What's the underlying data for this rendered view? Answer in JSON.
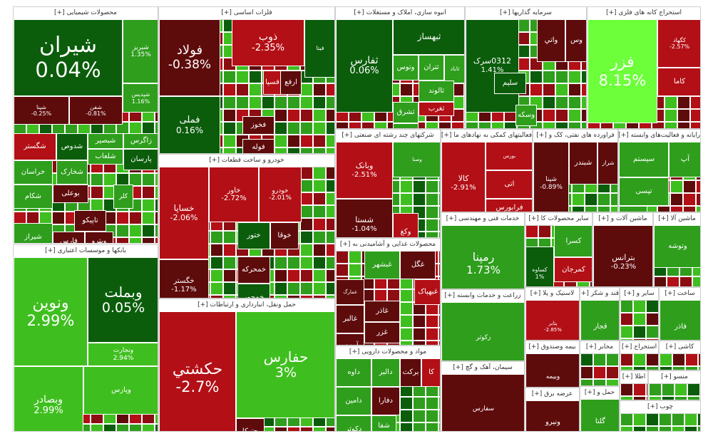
{
  "colors": {
    "dark_green": "#0b5d0b",
    "green": "#2e9e1c",
    "light_green": "#3fbf1f",
    "bright_green": "#6cff3a",
    "red": "#b30f16",
    "dark_red": "#5e0b0b",
    "medium_red": "#8c0d12"
  },
  "sectors": [
    {
      "title": "محصولات شیمیایی [+]",
      "tiles": [
        {
          "sym": "شیران",
          "pct": "0.04%",
          "c": "dark_green"
        },
        {
          "sym": "شبریز",
          "pct": "1.35%",
          "c": "green"
        },
        {
          "sym": "شپدیس",
          "pct": "1.16%",
          "c": "green"
        },
        {
          "sym": "شپنا",
          "pct": "-0.25%",
          "c": "dark_red"
        },
        {
          "sym": "شفن",
          "pct": "-0.81%",
          "c": "dark_red"
        },
        {
          "sym": "شگستر",
          "pct": "",
          "c": "red"
        },
        {
          "sym": "شدوص",
          "pct": "",
          "c": "dark_green"
        },
        {
          "sym": "شبصیر",
          "pct": "",
          "c": "green"
        },
        {
          "sym": "زاگرس",
          "pct": "",
          "c": "green"
        },
        {
          "sym": "خراسان",
          "pct": "",
          "c": "green"
        },
        {
          "sym": "شخارک",
          "pct": "",
          "c": "green"
        },
        {
          "sym": "شلعاب",
          "pct": "",
          "c": "green"
        },
        {
          "sym": "پارسان",
          "pct": "",
          "c": "dark_green"
        },
        {
          "sym": "شکام",
          "pct": "",
          "c": "green"
        },
        {
          "sym": "بوعلی",
          "pct": "",
          "c": "dark_red"
        },
        {
          "sym": "تاپیکو",
          "pct": "",
          "c": "dark_red"
        },
        {
          "sym": "شیراز",
          "pct": "",
          "c": "green"
        },
        {
          "sym": "فارس",
          "pct": "",
          "c": "dark_red"
        },
        {
          "sym": "وپترو",
          "pct": "",
          "c": "dark_red"
        },
        {
          "sym": "کلر",
          "pct": "",
          "c": "green"
        }
      ]
    },
    {
      "title": "بانکها و موسسات اعتباری [+]",
      "tiles": [
        {
          "sym": "ونوین",
          "pct": "2.99%",
          "c": "light_green"
        },
        {
          "sym": "وبملت",
          "pct": "0.05%",
          "c": "dark_green"
        },
        {
          "sym": "ونجارت",
          "pct": "2.94%",
          "c": "light_green"
        },
        {
          "sym": "وبصادر",
          "pct": "2.99%",
          "c": "light_green"
        },
        {
          "sym": "وپارس",
          "pct": "",
          "c": "light_green"
        }
      ]
    },
    {
      "title": "فلزات اساسی [+]",
      "tiles": [
        {
          "sym": "فولاد",
          "pct": "-0.38%",
          "c": "dark_red"
        },
        {
          "sym": "ذوب",
          "pct": "-2.35%",
          "c": "red"
        },
        {
          "sym": "فملی",
          "pct": "0.16%",
          "c": "dark_green"
        },
        {
          "sym": "فسپا",
          "pct": "",
          "c": "red"
        },
        {
          "sym": "ارفع",
          "pct": "",
          "c": "dark_red"
        },
        {
          "sym": "فیتا",
          "pct": "",
          "c": "dark_green"
        },
        {
          "sym": "فخوز",
          "pct": "",
          "c": "dark_red"
        },
        {
          "sym": "فوله",
          "pct": "",
          "c": "dark_red"
        }
      ]
    },
    {
      "title": "خودرو و ساخت قطعات [+]",
      "tiles": [
        {
          "sym": "خساپا",
          "pct": "-2.06%",
          "c": "red"
        },
        {
          "sym": "خاور",
          "pct": "-2.72%",
          "c": "red"
        },
        {
          "sym": "خودرو",
          "pct": "-2.01%",
          "c": "red"
        },
        {
          "sym": "خگستر",
          "pct": "-1.17%",
          "c": "dark_red"
        },
        {
          "sym": "ختور",
          "pct": "",
          "c": "dark_green"
        },
        {
          "sym": "خوقا",
          "pct": "",
          "c": "dark_red"
        },
        {
          "sym": "خمحرکه",
          "pct": "",
          "c": "dark_red"
        },
        {
          "sym": "خمحور",
          "pct": "",
          "c": "dark_green"
        }
      ]
    },
    {
      "title": "حمل ونقل، انبارداری و ارتباطات [+]",
      "tiles": [
        {
          "sym": "حکشتي",
          "pct": "-2.7%",
          "c": "red"
        },
        {
          "sym": "حفارس",
          "pct": "3%",
          "c": "light_green"
        },
        {
          "sym": "حتوکا",
          "pct": "",
          "c": "dark_red"
        }
      ]
    },
    {
      "title": "انبوه سازی، املاک و مستغلات [+]",
      "tiles": [
        {
          "sym": "ثفارس",
          "pct": "0.06%",
          "c": "dark_green"
        },
        {
          "sym": "ثبهساز",
          "pct": "",
          "c": "dark_green"
        },
        {
          "sym": "ثتران",
          "pct": "",
          "c": "green"
        },
        {
          "sym": "وتوس",
          "pct": "",
          "c": "green"
        },
        {
          "sym": "ثاباد",
          "pct": "",
          "c": "green"
        },
        {
          "sym": "ثالوند",
          "pct": "",
          "c": "green"
        },
        {
          "sym": "ثغرب",
          "pct": "",
          "c": "red"
        },
        {
          "sym": "ثشرق",
          "pct": "",
          "c": "green"
        },
        {
          "sym": "ثتوسا",
          "pct": "",
          "c": "green"
        }
      ]
    },
    {
      "title": "سرمایه گذاریها [+]",
      "tiles": [
        {
          "sym": "0312سرک",
          "pct": "1.41%",
          "c": "dark_green"
        },
        {
          "sym": "وس",
          "pct": "",
          "c": "dark_red"
        },
        {
          "sym": "واتي",
          "pct": "",
          "c": "dark_red"
        },
        {
          "sym": "سلیم",
          "pct": "",
          "c": "dark_green"
        },
        {
          "sym": "وسکه",
          "pct": "",
          "c": "green"
        }
      ]
    },
    {
      "title": "استخراج کانه های فلزی [+]",
      "tiles": [
        {
          "sym": "فزر",
          "pct": "8.15%",
          "c": "bright_green"
        },
        {
          "sym": "کگهاد",
          "pct": "-2.57%",
          "c": "red"
        },
        {
          "sym": "کاما",
          "pct": "",
          "c": "red"
        }
      ]
    },
    {
      "title": "شرکتهای چند رشته ای صنعتی [+]",
      "tiles": [
        {
          "sym": "وبانک",
          "pct": "-2.51%",
          "c": "red"
        },
        {
          "sym": "شستا",
          "pct": "-1.04%",
          "c": "dark_red"
        },
        {
          "sym": "وصنا",
          "pct": "",
          "c": "green"
        },
        {
          "sym": "وکغ",
          "pct": "",
          "c": "red"
        }
      ]
    },
    {
      "title": "محصولات غذایی و آشامیدنی به [+]",
      "tiles": [
        {
          "sym": "غبشهر",
          "pct": "",
          "c": "green"
        },
        {
          "sym": "غگل",
          "pct": "",
          "c": "dark_red"
        },
        {
          "sym": "غبهپاک",
          "pct": "",
          "c": "red"
        },
        {
          "sym": "غمارگ",
          "pct": "",
          "c": "dark_red"
        },
        {
          "sym": "غاذر",
          "pct": "",
          "c": "dark_red"
        },
        {
          "sym": "غالبر",
          "pct": "",
          "c": "dark_red"
        },
        {
          "sym": "غزر",
          "pct": "",
          "c": "dark_red"
        },
        {
          "sym": "آردینه",
          "pct": "",
          "c": "dark_red"
        }
      ]
    },
    {
      "title": "مواد و محصولات دارویی [+]",
      "tiles": [
        {
          "sym": "داوه",
          "pct": "",
          "c": "green"
        },
        {
          "sym": "دالبر",
          "pct": "",
          "c": "green"
        },
        {
          "sym": "برکت",
          "pct": "",
          "c": "dark_red"
        },
        {
          "sym": "کا",
          "pct": "",
          "c": "red"
        },
        {
          "sym": "دامین",
          "pct": "",
          "c": "green"
        },
        {
          "sym": "دفارا",
          "pct": "",
          "c": "dark_red"
        },
        {
          "sym": "شفا",
          "pct": "",
          "c": "green"
        },
        {
          "sym": "دکوثر",
          "pct": "",
          "c": "green"
        }
      ]
    },
    {
      "title": "فعالیتهای کمکی به نهادهای ما [+]",
      "tiles": [
        {
          "sym": "کالا",
          "pct": "-2.91%",
          "c": "red"
        },
        {
          "sym": "بورس",
          "pct": "",
          "c": "red"
        },
        {
          "sym": "اتی",
          "pct": "",
          "c": "red"
        },
        {
          "sym": "فرابورس",
          "pct": "-2.82%",
          "c": "red"
        }
      ]
    },
    {
      "title": "فراورده های نفتی، کک و [+]",
      "tiles": [
        {
          "sym": "شپنا",
          "pct": "-0.89%",
          "c": "dark_red"
        },
        {
          "sym": "شبندر",
          "pct": "",
          "c": "dark_red"
        },
        {
          "sym": "شراز",
          "pct": "",
          "c": "dark_red"
        }
      ]
    },
    {
      "title": "رایانه و فعالیت‌های وابسته [+]",
      "tiles": [
        {
          "sym": "سیستم",
          "pct": "",
          "c": "green"
        },
        {
          "sym": "آپ",
          "pct": "",
          "c": "green"
        },
        {
          "sym": "تپسی",
          "pct": "",
          "c": "green"
        },
        {
          "sym": "افرا",
          "pct": "",
          "c": "green"
        }
      ]
    },
    {
      "title": "خدمات فنی و مهندسی [+]",
      "tiles": [
        {
          "sym": "رمپنا",
          "pct": "1.73%",
          "c": "green"
        }
      ]
    },
    {
      "title": "سایر محصولات کا [+]",
      "tiles": [
        {
          "sym": "کسرا",
          "pct": "",
          "c": "green"
        },
        {
          "sym": "کساوه",
          "pct": "1%",
          "c": "dark_green"
        },
        {
          "sym": "کمرجان",
          "pct": "",
          "c": "red"
        }
      ]
    },
    {
      "title": "ماشین آلات و [+]",
      "tiles": [
        {
          "sym": "بترانس",
          "pct": "-0.23%",
          "c": "dark_red"
        }
      ]
    },
    {
      "title": "ماشین آلا [+]",
      "tiles": [
        {
          "sym": "وتوشه",
          "pct": "",
          "c": "green"
        }
      ]
    },
    {
      "title": "زراعت و خدمات وابسته [+]",
      "tiles": [
        {
          "sym": "زکوثر",
          "pct": "",
          "c": "green"
        }
      ]
    },
    {
      "title": "سیمان، آهک و گچ [+]",
      "tiles": [
        {
          "sym": "سفارس",
          "pct": "",
          "c": "dark_red"
        }
      ]
    },
    {
      "title": "لاستیک و پلا [+]",
      "tiles": [
        {
          "sym": "پتایر",
          "pct": "-2.85%",
          "c": "red"
        }
      ]
    },
    {
      "title": "قند و شکر [+]",
      "tiles": [
        {
          "sym": "قجار",
          "pct": "",
          "c": "green"
        }
      ]
    },
    {
      "title": "بیمه وصندوق [+]",
      "tiles": [
        {
          "sym": "وبیمه",
          "pct": "",
          "c": "dark_red"
        }
      ]
    },
    {
      "title": "عرضه برق [+]",
      "tiles": [
        {
          "sym": "ونیرو",
          "pct": "",
          "c": "dark_red"
        }
      ]
    },
    {
      "title": "سایر و [+]",
      "tiles": []
    },
    {
      "title": "استخراج [+]",
      "tiles": []
    },
    {
      "title": "ساخت [+]",
      "tiles": [
        {
          "sym": "فاذر",
          "pct": "",
          "c": "green"
        }
      ]
    },
    {
      "title": "کاشی [+]",
      "tiles": []
    },
    {
      "title": "مخابر [+]",
      "tiles": []
    },
    {
      "title": "اطلا [+]",
      "tiles": []
    },
    {
      "title": "منسو [+]",
      "tiles": []
    },
    {
      "title": "حمل و [+]",
      "tiles": [
        {
          "sym": "گلتا",
          "pct": "",
          "c": "green"
        }
      ]
    },
    {
      "title": "چوب [+]",
      "tiles": []
    }
  ]
}
